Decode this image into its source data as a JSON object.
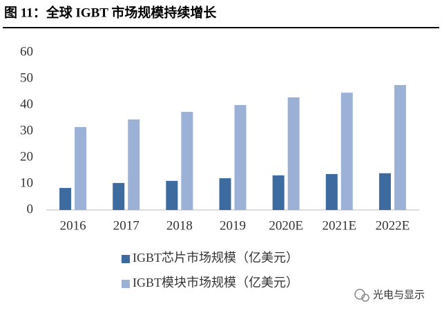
{
  "chart_data": {
    "type": "bar",
    "title": "图 11：全球 IGBT 市场规模持续增长",
    "categories": [
      "2016",
      "2017",
      "2018",
      "2019",
      "2020E",
      "2021E",
      "2022E"
    ],
    "series": [
      {
        "name": "IGBT芯片市场规模（亿美元）",
        "color": "#3e6b9f",
        "values": [
          8.4,
          10.3,
          11.1,
          12.1,
          13.2,
          13.7,
          14.0
        ]
      },
      {
        "name": "IGBT模块市场规模（亿美元）",
        "color": "#9bb2d6",
        "values": [
          31.6,
          34.5,
          37.4,
          40.0,
          42.9,
          44.7,
          47.6
        ]
      }
    ],
    "ylim": [
      0,
      60
    ],
    "yticks": [
      0,
      10,
      20,
      30,
      40,
      50,
      60
    ],
    "grid": false,
    "legend": "bottom"
  },
  "watermark": "光电与显示"
}
